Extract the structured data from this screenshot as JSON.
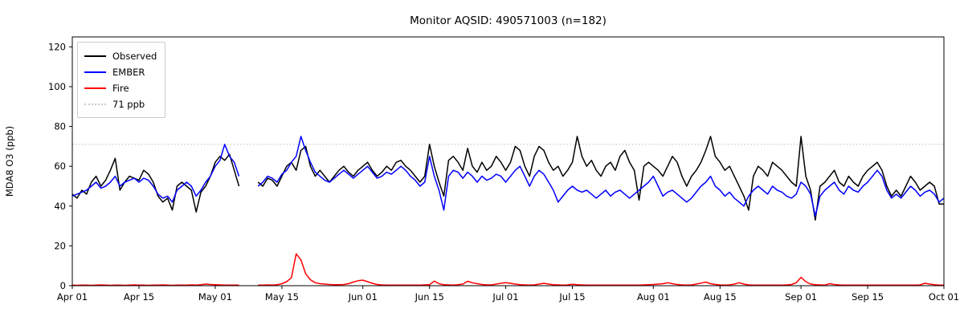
{
  "title": "Monitor AQSID: 490571003 (n=182)",
  "chart_data": {
    "type": "line",
    "title": "Monitor AQSID: 490571003 (n=182)",
    "xlabel": "",
    "ylabel": "MDA8 O3 (ppb)",
    "ylim": [
      0,
      125
    ],
    "xlim_days": [
      0,
      183
    ],
    "grid": false,
    "legend_position": "upper-left",
    "x_tick_positions": [
      0,
      14,
      30,
      44,
      61,
      75,
      91,
      105,
      122,
      136,
      153,
      167,
      183
    ],
    "x_tick_labels": [
      "Apr 01",
      "Apr 15",
      "May 01",
      "May 15",
      "Jun 01",
      "Jun 15",
      "Jul 01",
      "Jul 15",
      "Aug 01",
      "Aug 15",
      "Sep 01",
      "Sep 15",
      "Oct 01"
    ],
    "y_ticks": [
      0,
      20,
      40,
      60,
      80,
      100,
      120
    ],
    "threshold": {
      "value": 71,
      "label": "71 ppb",
      "color": "#c8c8c8",
      "style": "dotted"
    },
    "legend": {
      "items": [
        "Observed",
        "EMBER",
        "Fire",
        "71 ppb"
      ]
    },
    "x_unit": "day index from Apr 01, daily values, null = missing data gap",
    "series": [
      {
        "name": "Observed",
        "color": "#000000",
        "values": [
          46,
          44,
          48,
          46,
          52,
          55,
          50,
          53,
          58,
          64,
          48,
          52,
          55,
          54,
          53,
          58,
          56,
          52,
          45,
          42,
          44,
          38,
          50,
          52,
          50,
          48,
          37,
          47,
          50,
          55,
          62,
          65,
          63,
          66,
          58,
          50,
          null,
          null,
          null,
          52,
          50,
          54,
          53,
          50,
          55,
          60,
          62,
          58,
          68,
          70,
          60,
          55,
          58,
          55,
          52,
          55,
          58,
          60,
          57,
          55,
          58,
          60,
          62,
          58,
          55,
          57,
          60,
          58,
          62,
          63,
          60,
          58,
          55,
          52,
          55,
          71,
          60,
          52,
          45,
          63,
          65,
          62,
          58,
          69,
          60,
          57,
          62,
          58,
          60,
          65,
          62,
          58,
          62,
          70,
          68,
          60,
          55,
          65,
          70,
          68,
          62,
          58,
          60,
          55,
          58,
          62,
          75,
          65,
          60,
          63,
          58,
          55,
          60,
          62,
          58,
          65,
          68,
          62,
          58,
          43,
          60,
          62,
          60,
          58,
          55,
          60,
          65,
          62,
          55,
          50,
          55,
          58,
          62,
          68,
          75,
          65,
          62,
          58,
          60,
          55,
          50,
          45,
          38,
          55,
          60,
          58,
          55,
          62,
          60,
          58,
          55,
          52,
          50,
          75,
          55,
          48,
          33,
          50,
          52,
          55,
          58,
          52,
          50,
          55,
          52,
          50,
          55,
          58,
          60,
          62,
          58,
          50,
          45,
          48,
          45,
          50,
          55,
          52,
          48,
          50,
          52,
          50,
          41,
          41
        ]
      },
      {
        "name": "EMBER",
        "color": "#0000ff",
        "values": [
          45,
          46,
          47,
          48,
          50,
          52,
          49,
          50,
          52,
          55,
          50,
          52,
          53,
          54,
          52,
          54,
          53,
          50,
          46,
          44,
          45,
          42,
          48,
          50,
          52,
          50,
          45,
          48,
          52,
          55,
          60,
          63,
          71,
          65,
          62,
          55,
          null,
          null,
          null,
          50,
          52,
          55,
          54,
          52,
          56,
          58,
          62,
          65,
          75,
          68,
          62,
          57,
          55,
          53,
          52,
          54,
          56,
          58,
          56,
          54,
          56,
          58,
          60,
          57,
          54,
          55,
          57,
          56,
          58,
          60,
          58,
          55,
          53,
          50,
          52,
          65,
          55,
          48,
          38,
          55,
          58,
          57,
          54,
          57,
          55,
          52,
          55,
          53,
          54,
          56,
          55,
          52,
          55,
          58,
          60,
          55,
          50,
          55,
          58,
          56,
          52,
          48,
          42,
          45,
          48,
          50,
          48,
          47,
          48,
          46,
          44,
          46,
          48,
          45,
          47,
          48,
          46,
          44,
          46,
          48,
          50,
          52,
          55,
          50,
          45,
          47,
          48,
          46,
          44,
          42,
          44,
          47,
          50,
          52,
          55,
          50,
          48,
          45,
          47,
          44,
          42,
          40,
          45,
          48,
          50,
          48,
          46,
          50,
          48,
          47,
          45,
          44,
          46,
          52,
          50,
          46,
          35,
          45,
          48,
          50,
          52,
          48,
          46,
          50,
          48,
          47,
          50,
          52,
          55,
          58,
          55,
          48,
          44,
          46,
          44,
          47,
          50,
          48,
          45,
          47,
          48,
          46,
          42,
          44
        ]
      },
      {
        "name": "Fire",
        "color": "#ff0000",
        "values": [
          0.3,
          0.2,
          0.3,
          0.3,
          0.2,
          0.3,
          0.4,
          0.3,
          0.2,
          0.3,
          0.3,
          0.2,
          0.3,
          0.4,
          0.3,
          0.3,
          0.2,
          0.3,
          0.3,
          0.4,
          0.3,
          0.2,
          0.3,
          0.3,
          0.3,
          0.4,
          0.3,
          0.5,
          0.8,
          0.6,
          0.5,
          0.4,
          0.3,
          0.3,
          0.3,
          0.3,
          null,
          null,
          null,
          0.3,
          0.3,
          0.4,
          0.3,
          0.5,
          1.0,
          2.0,
          4.0,
          16.0,
          13.0,
          6.0,
          3.0,
          1.5,
          1.0,
          0.8,
          0.6,
          0.5,
          0.5,
          0.6,
          1.0,
          1.8,
          2.5,
          2.8,
          2.0,
          1.2,
          0.6,
          0.4,
          0.3,
          0.3,
          0.3,
          0.3,
          0.3,
          0.3,
          0.3,
          0.3,
          0.4,
          0.5,
          2.3,
          1.0,
          0.5,
          0.4,
          0.3,
          0.5,
          0.8,
          2.2,
          1.5,
          1.0,
          0.6,
          0.4,
          0.4,
          0.8,
          1.2,
          1.5,
          1.2,
          0.8,
          0.5,
          0.4,
          0.3,
          0.4,
          0.8,
          1.2,
          0.8,
          0.5,
          0.4,
          0.3,
          0.4,
          0.7,
          0.5,
          0.4,
          0.3,
          0.3,
          0.3,
          0.3,
          0.3,
          0.3,
          0.3,
          0.3,
          0.3,
          0.3,
          0.3,
          0.3,
          0.4,
          0.5,
          0.6,
          0.8,
          1.0,
          1.5,
          1.0,
          0.6,
          0.4,
          0.3,
          0.4,
          0.8,
          1.3,
          1.8,
          1.0,
          0.6,
          0.4,
          0.3,
          0.4,
          0.8,
          1.5,
          0.8,
          0.4,
          0.3,
          0.3,
          0.3,
          0.3,
          0.3,
          0.3,
          0.3,
          0.4,
          0.6,
          1.5,
          4.2,
          2.0,
          0.8,
          0.5,
          0.4,
          0.3,
          1.0,
          0.6,
          0.4,
          0.3,
          0.3,
          0.3,
          0.3,
          0.3,
          0.3,
          0.3,
          0.3,
          0.3,
          0.3,
          0.3,
          0.3,
          0.3,
          0.3,
          0.3,
          0.3,
          0.4,
          1.2,
          0.8,
          0.5,
          0.3,
          0.3
        ]
      }
    ]
  },
  "colors": {
    "background": "#ffffff",
    "axes": "#000000",
    "observed": "#000000",
    "ember": "#0000ff",
    "fire": "#ff0000",
    "threshold": "#c8c8c8"
  }
}
